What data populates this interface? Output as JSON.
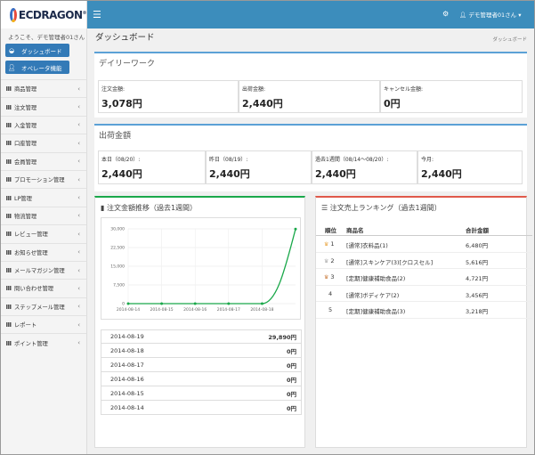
{
  "app": {
    "logo_text": "ECDRAGON",
    "welcome": "ようこそ、デモ管理者01さん",
    "user_menu": "デモ管理者01さん",
    "colors": {
      "topbar": "#3c8dbc",
      "accent": "#5ba1d6",
      "chart_line": "#1aa84a",
      "ranking_border": "#e0594a"
    }
  },
  "sidebar": {
    "buttons": [
      {
        "label": "ダッシュボード",
        "icon": "dashboard-icon"
      },
      {
        "label": "オペレータ機能",
        "icon": "user-icon"
      }
    ],
    "items": [
      {
        "label": "商品管理"
      },
      {
        "label": "注文管理"
      },
      {
        "label": "入金管理"
      },
      {
        "label": "口座管理"
      },
      {
        "label": "会員管理"
      },
      {
        "label": "プロモーション管理"
      },
      {
        "label": "LP管理"
      },
      {
        "label": "物流管理"
      },
      {
        "label": "レビュー管理"
      },
      {
        "label": "お知らせ管理"
      },
      {
        "label": "メールマガジン管理"
      },
      {
        "label": "問い合わせ管理"
      },
      {
        "label": "ステップメール管理"
      },
      {
        "label": "レポート"
      },
      {
        "label": "ポイント管理"
      }
    ]
  },
  "header": {
    "title": "ダッシュボード",
    "breadcrumb": "ダッシュボード"
  },
  "daily": {
    "title": "デイリーワーク",
    "metrics": [
      {
        "label": "注文金額:",
        "value": "3,078円"
      },
      {
        "label": "出荷金額:",
        "value": "2,440円"
      },
      {
        "label": "キャンセル金額:",
        "value": "0円"
      }
    ]
  },
  "shipping": {
    "title": "出荷金額",
    "metrics": [
      {
        "label": "本日（08/20）:",
        "value": "2,440円"
      },
      {
        "label": "昨日（08/19）:",
        "value": "2,440円"
      },
      {
        "label": "過去1週間（08/14～08/20）:",
        "value": "2,440円"
      },
      {
        "label": "今月:",
        "value": "2,440円"
      }
    ]
  },
  "order_trend": {
    "title": "注文金額推移（過去1週間）",
    "rows": [
      {
        "date": "2014-08-19",
        "value": "29,890円"
      },
      {
        "date": "2014-08-18",
        "value": "0円"
      },
      {
        "date": "2014-08-17",
        "value": "0円"
      },
      {
        "date": "2014-08-16",
        "value": "0円"
      },
      {
        "date": "2014-08-15",
        "value": "0円"
      },
      {
        "date": "2014-08-14",
        "value": "0円"
      }
    ]
  },
  "chart_data": {
    "type": "line",
    "x": [
      "2014-08-14",
      "2014-08-15",
      "2014-08-16",
      "2014-08-17",
      "2014-08-18",
      "2014-08-19"
    ],
    "x_tick_labels": [
      "2014-08-14",
      "2014-08-15",
      "2014-08-16",
      "2014-08-17",
      "2014-08-18"
    ],
    "series": [
      {
        "values": [
          0,
          0,
          0,
          0,
          0,
          29890
        ]
      }
    ],
    "y_ticks": [
      "30,000",
      "22,500",
      "15,000",
      "7,500",
      "0"
    ],
    "ylim": [
      0,
      30000
    ],
    "grid": true,
    "color": "#1aa84a"
  },
  "ranking": {
    "title": "注文売上ランキング（過去1週間）",
    "headers": {
      "rank": "順位",
      "name": "商品名",
      "total": "合計金額"
    },
    "rows": [
      {
        "rank": "1",
        "name": "[通常]衣料品(1)",
        "total": "6,480円",
        "icon": "crown-gold-icon"
      },
      {
        "rank": "2",
        "name": "[通常]スキンケア(3)[クロスセル]",
        "total": "5,616円",
        "icon": "crown-silver-icon"
      },
      {
        "rank": "3",
        "name": "[定期]健康補助食品(2)",
        "total": "4,721円",
        "icon": "crown-bronze-icon"
      },
      {
        "rank": "4",
        "name": "[通常]ボディケア(2)",
        "total": "3,456円",
        "icon": ""
      },
      {
        "rank": "5",
        "name": "[定期]健康補助食品(3)",
        "total": "3,218円",
        "icon": ""
      }
    ]
  }
}
